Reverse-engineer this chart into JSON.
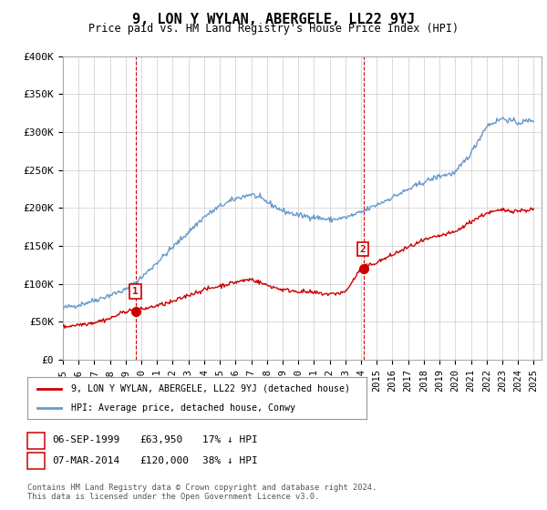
{
  "title": "9, LON Y WYLAN, ABERGELE, LL22 9YJ",
  "subtitle": "Price paid vs. HM Land Registry's House Price Index (HPI)",
  "ylabel_ticks": [
    "£0",
    "£50K",
    "£100K",
    "£150K",
    "£200K",
    "£250K",
    "£300K",
    "£350K",
    "£400K"
  ],
  "ylim": [
    0,
    400000
  ],
  "xlim_start": 1995.0,
  "xlim_end": 2025.5,
  "transaction1": {
    "date_label": "06-SEP-1999",
    "date_x": 1999.67,
    "price": 63950,
    "price_label": "£63,950",
    "note": "17% ↓ HPI",
    "marker_label": "1"
  },
  "transaction2": {
    "date_label": "07-MAR-2014",
    "date_x": 2014.17,
    "price": 120000,
    "price_label": "£120,000",
    "note": "38% ↓ HPI",
    "marker_label": "2"
  },
  "red_line_color": "#cc0000",
  "blue_line_color": "#6699cc",
  "vline_color": "#cc0000",
  "background_color": "#ffffff",
  "grid_color": "#cccccc",
  "legend_line1": "9, LON Y WYLAN, ABERGELE, LL22 9YJ (detached house)",
  "legend_line2": "HPI: Average price, detached house, Conwy",
  "footer": "Contains HM Land Registry data © Crown copyright and database right 2024.\nThis data is licensed under the Open Government Licence v3.0.",
  "x_tick_years": [
    1995,
    1996,
    1997,
    1998,
    1999,
    2000,
    2001,
    2002,
    2003,
    2004,
    2005,
    2006,
    2007,
    2008,
    2009,
    2010,
    2011,
    2012,
    2013,
    2014,
    2015,
    2016,
    2017,
    2018,
    2019,
    2020,
    2021,
    2022,
    2023,
    2024,
    2025
  ]
}
